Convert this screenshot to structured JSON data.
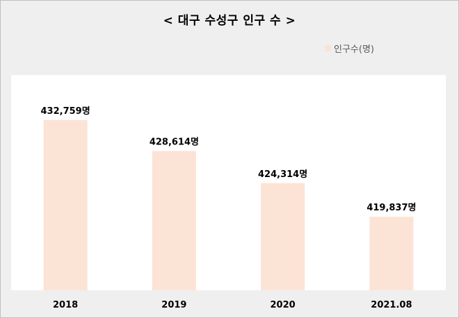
{
  "chart_data": {
    "type": "bar",
    "title": "< 대구 수성구 인구 수 >",
    "categories": [
      "2018",
      "2019",
      "2020",
      "2021.08"
    ],
    "series": [
      {
        "name": "인구수(명)",
        "values": [
          432759,
          428614,
          424314,
          419837
        ],
        "data_labels": [
          "432,759명",
          "428,614명",
          "424,314명",
          "419,837명"
        ]
      }
    ],
    "ylim": [
      410000,
      436000
    ],
    "grid": false,
    "legend_position": "top-right",
    "bar_color": "#FBE3D6"
  }
}
